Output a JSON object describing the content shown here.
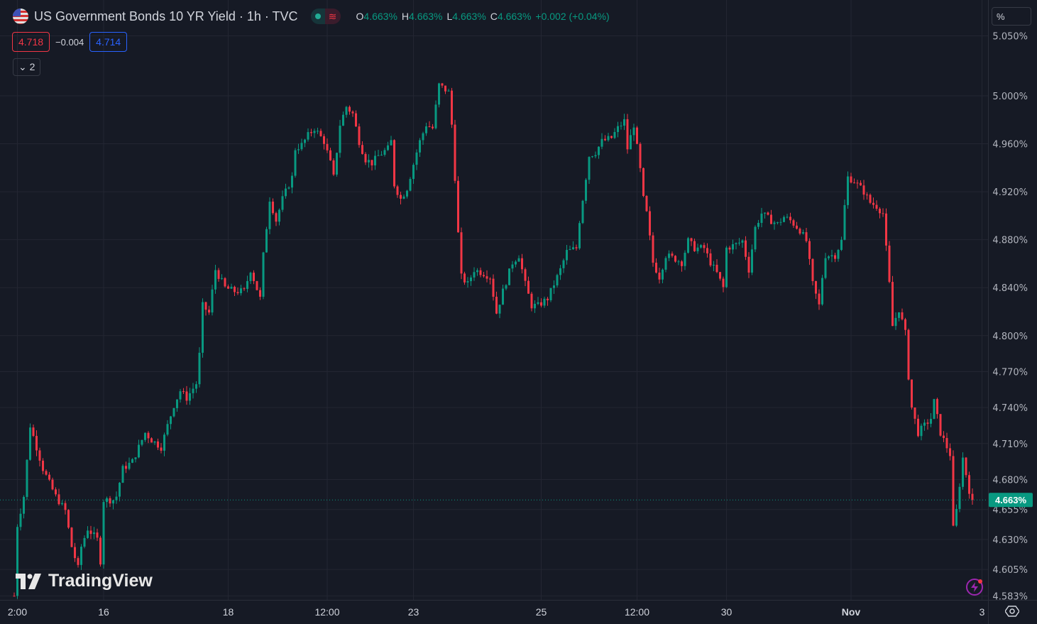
{
  "header": {
    "title": "US Government Bonds 10 YR Yield · 1h · TVC",
    "ohlc": [
      {
        "k": "O",
        "v": "4.663%"
      },
      {
        "k": "H",
        "v": "4.663%"
      },
      {
        "k": "L",
        "v": "4.663%"
      },
      {
        "k": "C",
        "v": "4.663%"
      }
    ],
    "change": "+0.002 (+0.04%)",
    "sell_price": "4.718",
    "spread": "−0.004",
    "buy_price": "4.714",
    "indicators_toggle": "2",
    "unit_label": "%"
  },
  "logo_text": "TradingView",
  "colors": {
    "up": "#089981",
    "down": "#f23645",
    "background": "#161a25",
    "grid": "#232632",
    "axis_text": "#b2b5be",
    "last_price": "#089981"
  },
  "chart_data": {
    "type": "candlestick",
    "title": "US Government Bonds 10 YR Yield · 1h · TVC",
    "ylabel": "%",
    "ylim": [
      4.578,
      5.061
    ],
    "grid": true,
    "last_price": 4.663,
    "last_price_label": "4.663%",
    "y_ticks": [
      "5.050%",
      "5.000%",
      "4.960%",
      "4.920%",
      "4.880%",
      "4.840%",
      "4.800%",
      "4.770%",
      "4.740%",
      "4.710%",
      "4.680%",
      "4.655%",
      "4.630%",
      "4.605%",
      "4.583%"
    ],
    "y_tick_values": [
      5.05,
      5.0,
      4.96,
      4.92,
      4.88,
      4.84,
      4.8,
      4.77,
      4.74,
      4.71,
      4.68,
      4.655,
      4.63,
      4.605,
      4.583
    ],
    "x_ticks": [
      "2:00",
      "16",
      "18",
      "12:00",
      "23",
      "25",
      "12:00",
      "30",
      "Nov",
      "3"
    ],
    "x_tick_bars": [
      1,
      28,
      67,
      98,
      125,
      165,
      195,
      223,
      262,
      303
    ],
    "close_path": [
      [
        0,
        4.583
      ],
      [
        1,
        4.642
      ],
      [
        3,
        4.666
      ],
      [
        5,
        4.725
      ],
      [
        7,
        4.707
      ],
      [
        9,
        4.689
      ],
      [
        11,
        4.677
      ],
      [
        13,
        4.666
      ],
      [
        16,
        4.654
      ],
      [
        18,
        4.624
      ],
      [
        20,
        4.606
      ],
      [
        21,
        4.624
      ],
      [
        23,
        4.639
      ],
      [
        26,
        4.63
      ],
      [
        27,
        4.612
      ],
      [
        28,
        4.663
      ],
      [
        31,
        4.663
      ],
      [
        32,
        4.666
      ],
      [
        34,
        4.689
      ],
      [
        37,
        4.695
      ],
      [
        39,
        4.707
      ],
      [
        41,
        4.719
      ],
      [
        43,
        4.713
      ],
      [
        46,
        4.707
      ],
      [
        48,
        4.725
      ],
      [
        50,
        4.742
      ],
      [
        52,
        4.754
      ],
      [
        54,
        4.748
      ],
      [
        57,
        4.76
      ],
      [
        58,
        4.784
      ],
      [
        59,
        4.825
      ],
      [
        61,
        4.819
      ],
      [
        63,
        4.855
      ],
      [
        66,
        4.84
      ],
      [
        69,
        4.837
      ],
      [
        72,
        4.837
      ],
      [
        74,
        4.855
      ],
      [
        77,
        4.831
      ],
      [
        78,
        4.867
      ],
      [
        80,
        4.914
      ],
      [
        82,
        4.896
      ],
      [
        84,
        4.914
      ],
      [
        87,
        4.932
      ],
      [
        88,
        4.956
      ],
      [
        90,
        4.959
      ],
      [
        92,
        4.967
      ],
      [
        94,
        4.973
      ],
      [
        97,
        4.962
      ],
      [
        99,
        4.944
      ],
      [
        100,
        4.932
      ],
      [
        102,
        4.976
      ],
      [
        104,
        4.991
      ],
      [
        106,
        4.985
      ],
      [
        108,
        4.962
      ],
      [
        110,
        4.947
      ],
      [
        112,
        4.944
      ],
      [
        114,
        4.95
      ],
      [
        117,
        4.956
      ],
      [
        118,
        4.962
      ],
      [
        119,
        4.926
      ],
      [
        121,
        4.914
      ],
      [
        123,
        4.923
      ],
      [
        126,
        4.953
      ],
      [
        127,
        4.962
      ],
      [
        129,
        4.976
      ],
      [
        131,
        4.973
      ],
      [
        133,
        5.009
      ],
      [
        136,
        5.003
      ],
      [
        137,
        4.976
      ],
      [
        138,
        4.932
      ],
      [
        139,
        4.885
      ],
      [
        140,
        4.849
      ],
      [
        142,
        4.843
      ],
      [
        144,
        4.855
      ],
      [
        147,
        4.852
      ],
      [
        149,
        4.849
      ],
      [
        151,
        4.819
      ],
      [
        153,
        4.837
      ],
      [
        156,
        4.861
      ],
      [
        158,
        4.867
      ],
      [
        160,
        4.843
      ],
      [
        162,
        4.825
      ],
      [
        164,
        4.825
      ],
      [
        167,
        4.831
      ],
      [
        169,
        4.843
      ],
      [
        171,
        4.855
      ],
      [
        173,
        4.87
      ],
      [
        176,
        4.873
      ],
      [
        177,
        4.896
      ],
      [
        178,
        4.914
      ],
      [
        180,
        4.95
      ],
      [
        182,
        4.953
      ],
      [
        184,
        4.962
      ],
      [
        187,
        4.965
      ],
      [
        189,
        4.973
      ],
      [
        191,
        4.979
      ],
      [
        192,
        4.956
      ],
      [
        194,
        4.976
      ],
      [
        196,
        4.938
      ],
      [
        197,
        4.914
      ],
      [
        198,
        4.902
      ],
      [
        200,
        4.861
      ],
      [
        202,
        4.849
      ],
      [
        204,
        4.867
      ],
      [
        207,
        4.864
      ],
      [
        209,
        4.861
      ],
      [
        211,
        4.879
      ],
      [
        213,
        4.873
      ],
      [
        216,
        4.873
      ],
      [
        218,
        4.861
      ],
      [
        220,
        4.852
      ],
      [
        222,
        4.84
      ],
      [
        223,
        4.873
      ],
      [
        226,
        4.876
      ],
      [
        228,
        4.879
      ],
      [
        230,
        4.855
      ],
      [
        232,
        4.89
      ],
      [
        234,
        4.902
      ],
      [
        237,
        4.896
      ],
      [
        239,
        4.893
      ],
      [
        241,
        4.899
      ],
      [
        243,
        4.896
      ],
      [
        246,
        4.888
      ],
      [
        248,
        4.879
      ],
      [
        250,
        4.843
      ],
      [
        252,
        4.825
      ],
      [
        253,
        4.849
      ],
      [
        254,
        4.867
      ],
      [
        257,
        4.867
      ],
      [
        259,
        4.879
      ],
      [
        260,
        4.908
      ],
      [
        261,
        4.932
      ],
      [
        263,
        4.929
      ],
      [
        266,
        4.92
      ],
      [
        268,
        4.911
      ],
      [
        270,
        4.908
      ],
      [
        272,
        4.902
      ],
      [
        274,
        4.843
      ],
      [
        275,
        4.808
      ],
      [
        277,
        4.822
      ],
      [
        279,
        4.802
      ],
      [
        280,
        4.766
      ],
      [
        281,
        4.74
      ],
      [
        283,
        4.719
      ],
      [
        284,
        4.722
      ],
      [
        287,
        4.731
      ],
      [
        288,
        4.745
      ],
      [
        290,
        4.719
      ],
      [
        292,
        4.707
      ],
      [
        293,
        4.701
      ],
      [
        294,
        4.639
      ],
      [
        295,
        4.654
      ],
      [
        297,
        4.698
      ],
      [
        299,
        4.671
      ],
      [
        300,
        4.663
      ]
    ]
  }
}
